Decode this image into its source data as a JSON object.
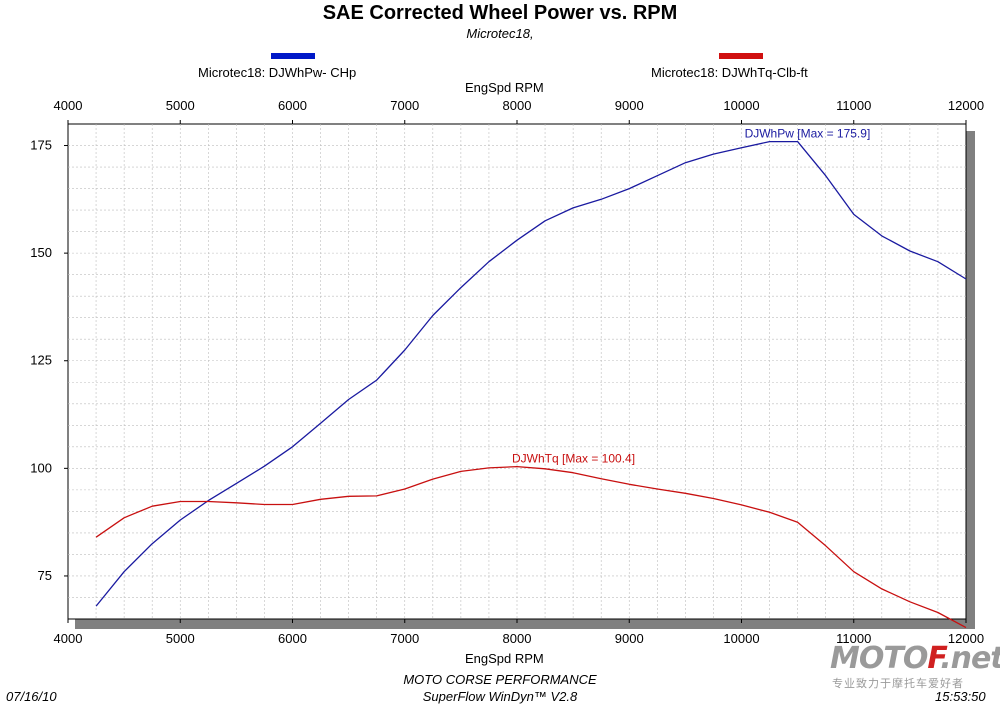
{
  "header": {
    "title": "SAE Corrected Wheel Power vs. RPM",
    "subtitle": "Microtec18,"
  },
  "legend": [
    {
      "label": "Microtec18: DJWhPw- CHp",
      "color": "#0018c8"
    },
    {
      "label": "Microtec18: DJWhTq-Clb-ft",
      "color": "#d01010"
    }
  ],
  "footer": {
    "company": "MOTO CORSE PERFORMANCE",
    "software": "SuperFlow WinDyn™ V2.8",
    "date": "07/16/10",
    "time": "15:53:50"
  },
  "watermark": {
    "brand_prefix": "MOTO",
    "brand_accent": "F",
    "brand_suffix": ".net",
    "tagline": "专业致力于摩托车爱好者"
  },
  "chart_data": {
    "type": "line",
    "xlabel_top": "EngSpd  RPM",
    "xlabel_bottom": "EngSpd  RPM",
    "xlim": [
      4000,
      12000
    ],
    "ylim": [
      65,
      180
    ],
    "xticks": [
      4000,
      5000,
      6000,
      7000,
      8000,
      9000,
      10000,
      11000,
      12000
    ],
    "yticks": [
      75,
      100,
      125,
      150,
      175
    ],
    "grid": true,
    "series": [
      {
        "name": "Microtec18: DJWhPw- CHp",
        "color": "#1a1aa0",
        "annotation": "DJWhPw [Max = 175.9]",
        "x": [
          4250,
          4500,
          4750,
          5000,
          5250,
          5500,
          5750,
          6000,
          6250,
          6500,
          6750,
          7000,
          7250,
          7500,
          7750,
          8000,
          8250,
          8500,
          8750,
          9000,
          9250,
          9500,
          9750,
          10000,
          10250,
          10500,
          10750,
          11000,
          11250,
          11500,
          11750,
          12000
        ],
        "values": [
          68,
          76,
          82.5,
          88,
          92.5,
          96.5,
          100.5,
          105,
          110.5,
          116,
          120.5,
          127.5,
          135.5,
          142,
          148,
          153,
          157.5,
          160.5,
          162.5,
          165,
          168,
          171,
          173,
          174.5,
          175.9,
          175.9,
          168,
          159,
          154,
          150.5,
          148,
          144
        ]
      },
      {
        "name": "Microtec18: DJWhTq-Clb-ft",
        "color": "#c81010",
        "annotation": "DJWhTq [Max = 100.4]",
        "x": [
          4250,
          4500,
          4750,
          5000,
          5250,
          5500,
          5750,
          6000,
          6250,
          6500,
          6750,
          7000,
          7250,
          7500,
          7750,
          8000,
          8250,
          8500,
          8750,
          9000,
          9250,
          9500,
          9750,
          10000,
          10250,
          10500,
          10750,
          11000,
          11250,
          11500,
          11750,
          12000
        ],
        "values": [
          84,
          88.5,
          91.2,
          92.3,
          92.3,
          92,
          91.6,
          91.6,
          92.8,
          93.5,
          93.6,
          95.2,
          97.5,
          99.3,
          100.1,
          100.4,
          99.9,
          99,
          97.6,
          96.3,
          95.2,
          94.2,
          93,
          91.5,
          89.8,
          87.5,
          82,
          76,
          72,
          69,
          66.5,
          63
        ]
      }
    ]
  }
}
